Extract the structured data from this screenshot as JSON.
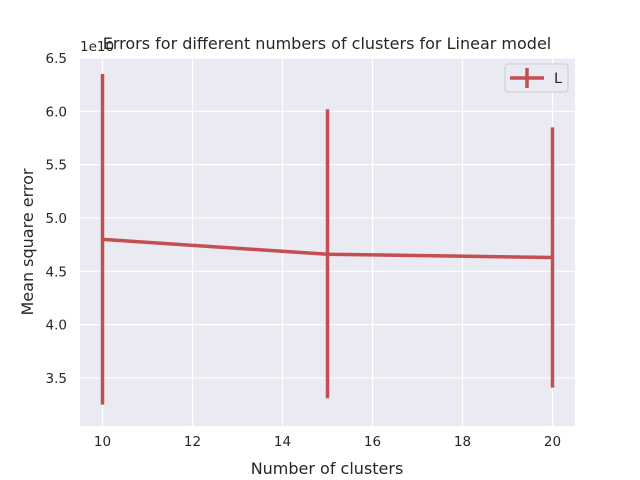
{
  "chart_data": {
    "type": "line",
    "title": "Errors for different numbers of clusters for Linear model",
    "xlabel": "Number of clusters",
    "ylabel": "Mean square error",
    "offset_text": "1e10",
    "x": [
      10,
      15,
      20
    ],
    "xlim": [
      9.5,
      20.5
    ],
    "ylim": [
      3.05,
      6.5
    ],
    "xticks": [
      10,
      12,
      14,
      16,
      18,
      20
    ],
    "xtick_labels": [
      "10",
      "12",
      "14",
      "16",
      "18",
      "20"
    ],
    "yticks": [
      3.5,
      4.0,
      4.5,
      5.0,
      5.5,
      6.0,
      6.5
    ],
    "ytick_labels": [
      "3.5",
      "4.0",
      "4.5",
      "5.0",
      "5.5",
      "6.0",
      "6.5"
    ],
    "series": [
      {
        "name": "L",
        "color": "#c44e52",
        "values": [
          4.8,
          4.66,
          4.63
        ],
        "error_low": [
          3.25,
          3.31,
          3.41
        ],
        "error_high": [
          6.35,
          6.02,
          5.85
        ]
      }
    ],
    "legend_position": "top-right",
    "grid": true,
    "background": "#eaeaf2"
  }
}
